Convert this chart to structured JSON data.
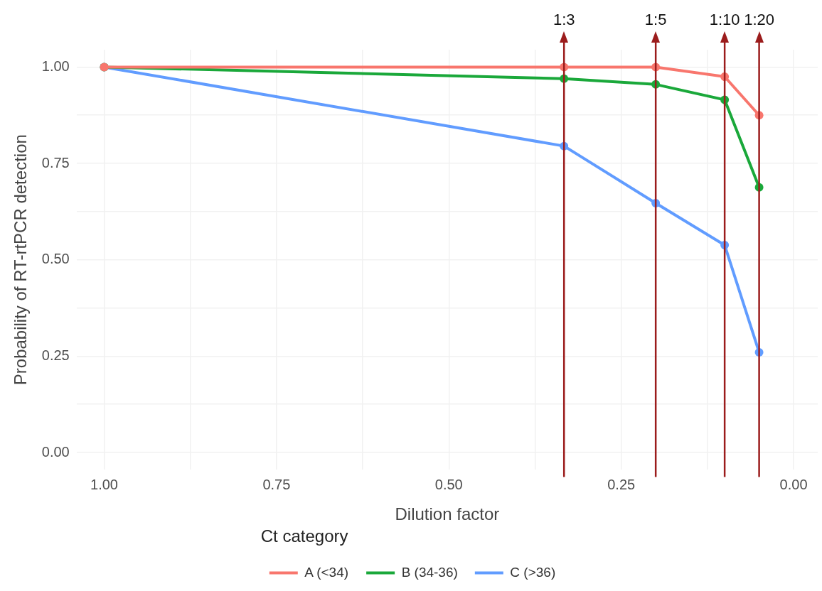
{
  "chart_data": {
    "type": "line",
    "xlabel": "Dilution factor",
    "ylabel": "Probability of RT-rtPCR detection",
    "legend_title": "Ct category",
    "x": [
      1,
      0.333,
      0.2,
      0.1,
      0.05
    ],
    "series": [
      {
        "name": "A (<34)",
        "color": "#f8766d",
        "values": [
          1,
          1.0,
          1.0,
          0.975,
          0.875
        ]
      },
      {
        "name": "B (34-36)",
        "color": "#1aa83a",
        "values": [
          1,
          0.97,
          0.955,
          0.915,
          0.688
        ]
      },
      {
        "name": "C (>36)",
        "color": "#619cff",
        "values": [
          1,
          0.795,
          0.647,
          0.538,
          0.26
        ]
      }
    ],
    "xlim": [
      1.04,
      -0.035
    ],
    "xticks": [
      {
        "value": 1,
        "label": "1.00"
      },
      {
        "value": 0.875,
        "label": null
      },
      {
        "value": 0.75,
        "label": "0.75"
      },
      {
        "value": 0.625,
        "label": null
      },
      {
        "value": 0.5,
        "label": "0.50"
      },
      {
        "value": 0.375,
        "label": null
      },
      {
        "value": 0.25,
        "label": "0.25"
      },
      {
        "value": 0.125,
        "label": null
      },
      {
        "value": 0,
        "label": "0.00"
      }
    ],
    "ylim": [
      -0.045,
      1.045
    ],
    "yticks": [
      {
        "value": 0,
        "label": "0.00"
      },
      {
        "value": 0.125,
        "label": null
      },
      {
        "value": 0.25,
        "label": "0.25"
      },
      {
        "value": 0.375,
        "label": null
      },
      {
        "value": 0.5,
        "label": "0.50"
      },
      {
        "value": 0.625,
        "label": null
      },
      {
        "value": 0.75,
        "label": "0.75"
      },
      {
        "value": 0.875,
        "label": null
      },
      {
        "value": 1,
        "label": "1.00"
      }
    ],
    "ref_lines": [
      {
        "axis": "x",
        "value": 0.333,
        "color": "#9b1c1c"
      },
      {
        "axis": "x",
        "value": 0.2,
        "color": "#9b1c1c"
      },
      {
        "axis": "x",
        "value": 0.1,
        "color": "#9b1c1c"
      },
      {
        "axis": "x",
        "value": 0.05,
        "color": "#9b1c1c"
      }
    ],
    "annotations": [
      "1:3",
      "1:5",
      "1:10",
      "1:20"
    ],
    "grid": true,
    "legend": "bottom",
    "marker": "circle",
    "line_style": "solid"
  }
}
